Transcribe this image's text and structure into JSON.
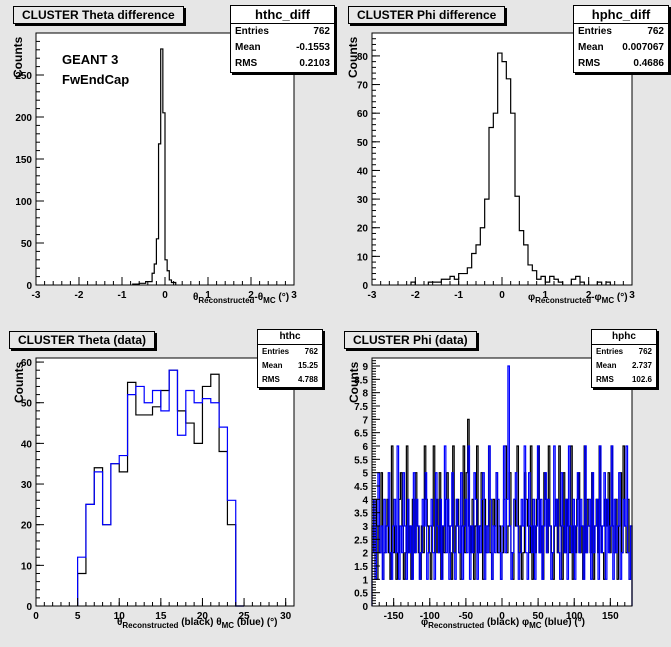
{
  "colors": {
    "frame": "#000000",
    "mc": "#0000ff",
    "pad": "#e6e6e6",
    "plot": "#ffffff"
  },
  "xlabels": {
    "theta_diff": {
      "a": "θ",
      "a_sub": "Reconstructed",
      "b": "-θ",
      "b_sub": "MC",
      "c": "(°)"
    },
    "phi_diff": {
      "a": "φ",
      "a_sub": "Reconstructed",
      "b": "-φ",
      "b_sub": "MC",
      "c": "(°)"
    },
    "theta_data": {
      "a": "θ",
      "a_sub": "Reconstructed",
      "b": "(black) θ",
      "b_sub": "MC",
      "c": "(blue) (°)"
    },
    "phi_data": {
      "a": "φ",
      "a_sub": "Reconstructed",
      "b": "(black) φ",
      "b_sub": "MC",
      "c": "(blue) (°)"
    }
  },
  "annotations": {
    "line1": "GEANT 3",
    "line2": "FwEndCap"
  },
  "chart_data": [
    {
      "type": "histogram",
      "title": "CLUSTER Theta difference",
      "ylabel": "Counts",
      "xlim": [
        -3,
        3
      ],
      "ylim": [
        0,
        300
      ],
      "xticks": [
        -3,
        -2,
        -1,
        0,
        1,
        2,
        3
      ],
      "yticks": [
        0,
        50,
        100,
        150,
        200,
        250
      ],
      "stats": {
        "name": "hthc_diff",
        "rows": [
          [
            "Entries",
            "762"
          ],
          [
            "Mean",
            "-0.1553"
          ],
          [
            "RMS",
            "0.2103"
          ]
        ]
      },
      "series": [
        {
          "color": "#000000",
          "bins": [
            [
              -0.75,
              -0.6,
              1
            ],
            [
              -0.6,
              -0.45,
              2
            ],
            [
              -0.45,
              -0.3,
              4
            ],
            [
              -0.3,
              -0.25,
              14
            ],
            [
              -0.25,
              -0.2,
              25
            ],
            [
              -0.2,
              -0.15,
              55
            ],
            [
              -0.15,
              -0.1,
              168
            ],
            [
              -0.1,
              -0.05,
              281
            ],
            [
              -0.05,
              0,
              205
            ],
            [
              0,
              0.05,
              30
            ],
            [
              0.05,
              0.1,
              17
            ],
            [
              0.1,
              0.15,
              6
            ],
            [
              0.15,
              0.25,
              3
            ]
          ]
        }
      ]
    },
    {
      "type": "histogram",
      "title": "CLUSTER Phi difference",
      "ylabel": "Counts",
      "xlim": [
        -3,
        3
      ],
      "ylim": [
        0,
        88
      ],
      "xticks": [
        -3,
        -2,
        -1,
        0,
        1,
        2,
        3
      ],
      "yticks": [
        0,
        10,
        20,
        30,
        40,
        50,
        60,
        70,
        80
      ],
      "stats": {
        "name": "hphc_diff",
        "rows": [
          [
            "Entries",
            "762"
          ],
          [
            "Mean",
            "0.007067"
          ],
          [
            "RMS",
            "0.4686"
          ]
        ]
      },
      "series": [
        {
          "color": "#000000",
          "bins": [
            [
              -2.1,
              -2.0,
              1
            ],
            [
              -1.7,
              -1.6,
              1
            ],
            [
              -1.6,
              -1.5,
              1
            ],
            [
              -1.5,
              -1.4,
              1
            ],
            [
              -1.4,
              -1.3,
              2
            ],
            [
              -1.3,
              -1.2,
              2
            ],
            [
              -1.2,
              -1.1,
              3
            ],
            [
              -1.1,
              -1.0,
              2
            ],
            [
              -1.0,
              -0.9,
              4
            ],
            [
              -0.9,
              -0.8,
              4
            ],
            [
              -0.8,
              -0.7,
              6
            ],
            [
              -0.7,
              -0.6,
              11
            ],
            [
              -0.6,
              -0.5,
              14
            ],
            [
              -0.5,
              -0.4,
              20
            ],
            [
              -0.4,
              -0.3,
              30
            ],
            [
              -0.3,
              -0.2,
              55
            ],
            [
              -0.2,
              -0.1,
              60
            ],
            [
              -0.1,
              0.0,
              81
            ],
            [
              0.0,
              0.1,
              78
            ],
            [
              0.1,
              0.2,
              72
            ],
            [
              0.2,
              0.3,
              60
            ],
            [
              0.3,
              0.4,
              31
            ],
            [
              0.4,
              0.5,
              19
            ],
            [
              0.5,
              0.6,
              14
            ],
            [
              0.6,
              0.7,
              7
            ],
            [
              0.7,
              0.8,
              5
            ],
            [
              0.8,
              0.9,
              2
            ],
            [
              0.9,
              1.0,
              3
            ],
            [
              1.0,
              1.1,
              1
            ],
            [
              1.1,
              1.2,
              3
            ],
            [
              1.2,
              1.3,
              2
            ],
            [
              1.3,
              1.4,
              1
            ],
            [
              1.6,
              1.7,
              2
            ],
            [
              1.7,
              1.8,
              3
            ],
            [
              1.8,
              1.9,
              1
            ],
            [
              2.2,
              2.3,
              1
            ],
            [
              2.4,
              2.5,
              1
            ]
          ]
        }
      ]
    },
    {
      "type": "histogram",
      "title": "CLUSTER Theta (data)",
      "ylabel": "Counts",
      "xlim": [
        0,
        31
      ],
      "ylim": [
        0,
        61
      ],
      "xticks": [
        0,
        5,
        10,
        15,
        20,
        25,
        30
      ],
      "yticks": [
        0,
        10,
        20,
        30,
        40,
        50,
        60
      ],
      "stats": {
        "name": "hthc",
        "rows": [
          [
            "Entries",
            "762"
          ],
          [
            "Mean",
            "15.25"
          ],
          [
            "RMS",
            "4.788"
          ]
        ]
      },
      "series": [
        {
          "color": "#000000",
          "bins": [
            [
              5,
              6,
              8
            ],
            [
              6,
              7,
              25
            ],
            [
              7,
              8,
              34
            ],
            [
              8,
              9,
              20
            ],
            [
              9,
              10,
              35
            ],
            [
              10,
              11,
              33
            ],
            [
              11,
              12,
              55
            ],
            [
              12,
              13,
              47
            ],
            [
              13,
              14,
              47
            ],
            [
              14,
              15,
              49
            ],
            [
              15,
              16,
              53
            ],
            [
              16,
              17,
              58
            ],
            [
              17,
              18,
              48
            ],
            [
              18,
              19,
              45
            ],
            [
              19,
              20,
              40
            ],
            [
              20,
              21,
              54
            ],
            [
              21,
              22,
              57
            ],
            [
              22,
              23,
              38
            ],
            [
              23,
              24,
              20
            ],
            [
              24,
              25,
              0
            ]
          ]
        },
        {
          "color": "#0000ff",
          "bins": [
            [
              5,
              6,
              12
            ],
            [
              6,
              7,
              25
            ],
            [
              7,
              8,
              33
            ],
            [
              8,
              9,
              20
            ],
            [
              9,
              10,
              35
            ],
            [
              10,
              11,
              37
            ],
            [
              11,
              12,
              52
            ],
            [
              12,
              13,
              54
            ],
            [
              13,
              14,
              50
            ],
            [
              14,
              15,
              53
            ],
            [
              15,
              16,
              48
            ],
            [
              16,
              17,
              58
            ],
            [
              17,
              18,
              42
            ],
            [
              18,
              19,
              53
            ],
            [
              19,
              20,
              50
            ],
            [
              20,
              21,
              51
            ],
            [
              21,
              22,
              50
            ],
            [
              22,
              23,
              44
            ],
            [
              23,
              24,
              26
            ],
            [
              24,
              25,
              0
            ]
          ]
        }
      ]
    },
    {
      "type": "histogram",
      "title": "CLUSTER Phi (data)",
      "ylabel": "Counts",
      "xlim": [
        -180,
        180
      ],
      "ylim": [
        0,
        9.3
      ],
      "xticks": [
        -150,
        -100,
        -50,
        0,
        50,
        100,
        150
      ],
      "yticks": [
        0,
        0.5,
        1,
        1.5,
        2,
        2.5,
        3,
        3.5,
        4,
        4.5,
        5,
        5.5,
        6,
        6.5,
        7,
        7.5,
        8,
        8.5,
        9
      ],
      "stats": {
        "name": "hphc",
        "rows": [
          [
            "Entries",
            "762"
          ],
          [
            "Mean",
            "2.737"
          ],
          [
            "RMS",
            "102.6"
          ]
        ]
      },
      "series": [
        {
          "color": "#000000",
          "values": [
            3,
            2,
            4,
            1,
            3,
            2,
            5,
            1,
            2,
            3,
            4,
            2,
            1,
            6,
            2,
            3,
            1,
            2,
            4,
            5,
            3,
            1,
            2,
            6,
            2,
            3,
            1,
            4,
            2,
            5,
            3,
            2,
            1,
            3,
            2,
            6,
            4,
            3,
            2,
            1,
            3,
            6,
            2,
            4,
            2,
            5,
            1,
            3,
            2,
            4,
            5,
            3,
            2,
            1,
            6,
            2,
            3,
            4,
            2,
            1,
            3,
            6,
            2,
            5,
            7,
            3,
            2,
            4,
            1,
            3,
            6,
            2,
            3,
            5,
            1,
            4,
            2,
            3,
            6,
            2,
            1,
            4,
            3,
            5,
            2,
            3,
            1,
            2,
            4,
            6,
            2,
            3,
            5,
            2,
            1,
            4,
            3,
            6,
            2,
            3,
            1,
            2,
            5,
            4,
            3,
            2,
            6,
            1,
            3,
            2,
            4,
            6,
            2,
            3,
            1,
            5,
            4,
            2,
            6,
            3,
            2,
            1,
            3,
            4,
            2,
            6,
            3,
            1,
            5,
            2,
            4,
            3,
            2,
            6,
            1,
            3,
            2,
            4,
            5,
            2,
            3,
            1,
            6,
            2,
            4,
            3,
            2,
            5,
            1,
            3,
            4,
            2,
            6,
            3,
            2,
            1,
            4,
            3,
            5,
            2,
            6,
            3,
            2,
            4,
            1,
            3,
            5,
            2,
            6,
            3,
            2,
            4,
            1,
            3
          ]
        },
        {
          "color": "#0000ff",
          "values": [
            2,
            4,
            1,
            3,
            5,
            2,
            3,
            1,
            4,
            2,
            3,
            5,
            2,
            1,
            3,
            4,
            2,
            6,
            1,
            3,
            2,
            5,
            3,
            1,
            4,
            2,
            3,
            1,
            5,
            2,
            4,
            3,
            1,
            2,
            4,
            3,
            5,
            1,
            2,
            3,
            4,
            2,
            1,
            5,
            3,
            2,
            4,
            1,
            3,
            6,
            2,
            4,
            1,
            3,
            5,
            2,
            1,
            4,
            3,
            2,
            5,
            1,
            3,
            4,
            2,
            6,
            1,
            3,
            2,
            5,
            4,
            1,
            3,
            2,
            4,
            5,
            1,
            3,
            2,
            6,
            4,
            1,
            3,
            2,
            5,
            4,
            2,
            1,
            3,
            6,
            2,
            4,
            9,
            3,
            1,
            2,
            4,
            5,
            3,
            1,
            2,
            4,
            3,
            6,
            2,
            1,
            5,
            3,
            2,
            4,
            1,
            3,
            6,
            2,
            4,
            1,
            3,
            5,
            2,
            4,
            3,
            1,
            2,
            6,
            3,
            4,
            2,
            1,
            5,
            3,
            2,
            4,
            1,
            6,
            3,
            2,
            4,
            1,
            3,
            5,
            2,
            4,
            3,
            1,
            6,
            2,
            3,
            4,
            1,
            5,
            2,
            3,
            4,
            1,
            6,
            2,
            3,
            5,
            1,
            4,
            2,
            3,
            6,
            1,
            4,
            2,
            3,
            5,
            1,
            2,
            4,
            3,
            6,
            2,
            1,
            3
          ]
        }
      ]
    }
  ]
}
